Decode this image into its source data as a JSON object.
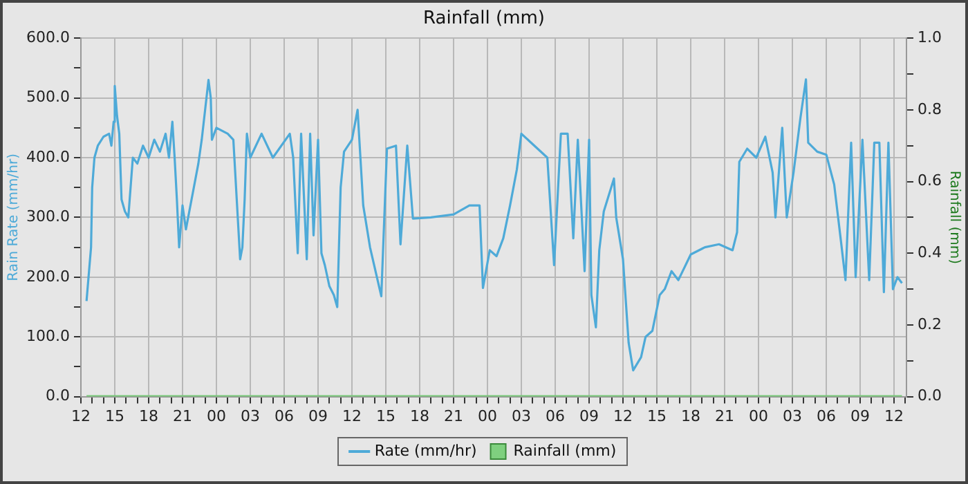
{
  "chart_data": {
    "type": "line",
    "title": "Rainfall (mm)",
    "ylabel": "Rain Rate (mm/hr)",
    "y2label": "Rainfall (mm)",
    "xlim": [
      12,
      85.1
    ],
    "xticks": [
      {
        "value": 12,
        "label": "12"
      },
      {
        "value": 13,
        "label": null
      },
      {
        "value": 14,
        "label": null
      },
      {
        "value": 15,
        "label": "15"
      },
      {
        "value": 16,
        "label": null
      },
      {
        "value": 17,
        "label": null
      },
      {
        "value": 18,
        "label": "18"
      },
      {
        "value": 19,
        "label": null
      },
      {
        "value": 20,
        "label": null
      },
      {
        "value": 21,
        "label": "21"
      },
      {
        "value": 22,
        "label": null
      },
      {
        "value": 23,
        "label": null
      },
      {
        "value": 24,
        "label": "00"
      },
      {
        "value": 25,
        "label": null
      },
      {
        "value": 26,
        "label": null
      },
      {
        "value": 27,
        "label": "03"
      },
      {
        "value": 28,
        "label": null
      },
      {
        "value": 29,
        "label": null
      },
      {
        "value": 30,
        "label": "06"
      },
      {
        "value": 31,
        "label": null
      },
      {
        "value": 32,
        "label": null
      },
      {
        "value": 33,
        "label": "09"
      },
      {
        "value": 34,
        "label": null
      },
      {
        "value": 35,
        "label": null
      },
      {
        "value": 36,
        "label": "12"
      },
      {
        "value": 37,
        "label": null
      },
      {
        "value": 38,
        "label": null
      },
      {
        "value": 39,
        "label": "15"
      },
      {
        "value": 40,
        "label": null
      },
      {
        "value": 41,
        "label": null
      },
      {
        "value": 42,
        "label": "18"
      },
      {
        "value": 43,
        "label": null
      },
      {
        "value": 44,
        "label": null
      },
      {
        "value": 45,
        "label": "21"
      },
      {
        "value": 46,
        "label": null
      },
      {
        "value": 47,
        "label": null
      },
      {
        "value": 48,
        "label": "00"
      },
      {
        "value": 49,
        "label": null
      },
      {
        "value": 50,
        "label": null
      },
      {
        "value": 51,
        "label": "03"
      },
      {
        "value": 52,
        "label": null
      },
      {
        "value": 53,
        "label": null
      },
      {
        "value": 54,
        "label": "06"
      },
      {
        "value": 55,
        "label": null
      },
      {
        "value": 56,
        "label": null
      },
      {
        "value": 57,
        "label": "09"
      },
      {
        "value": 58,
        "label": null
      },
      {
        "value": 59,
        "label": null
      },
      {
        "value": 60,
        "label": "12"
      },
      {
        "value": 61,
        "label": null
      },
      {
        "value": 62,
        "label": null
      },
      {
        "value": 63,
        "label": "15"
      },
      {
        "value": 64,
        "label": null
      },
      {
        "value": 65,
        "label": null
      },
      {
        "value": 66,
        "label": "18"
      },
      {
        "value": 67,
        "label": null
      },
      {
        "value": 68,
        "label": null
      },
      {
        "value": 69,
        "label": "21"
      },
      {
        "value": 70,
        "label": null
      },
      {
        "value": 71,
        "label": null
      },
      {
        "value": 72,
        "label": "00"
      },
      {
        "value": 73,
        "label": null
      },
      {
        "value": 74,
        "label": null
      },
      {
        "value": 75,
        "label": "03"
      },
      {
        "value": 76,
        "label": null
      },
      {
        "value": 77,
        "label": null
      },
      {
        "value": 78,
        "label": "06"
      },
      {
        "value": 79,
        "label": null
      },
      {
        "value": 80,
        "label": null
      },
      {
        "value": 81,
        "label": "09"
      },
      {
        "value": 82,
        "label": null
      },
      {
        "value": 83,
        "label": null
      },
      {
        "value": 84,
        "label": "12"
      },
      {
        "value": 85,
        "label": null
      }
    ],
    "ylim": [
      0,
      600
    ],
    "yticks": [
      {
        "value": 0,
        "label": "0.0"
      },
      {
        "value": 50,
        "label": null
      },
      {
        "value": 100,
        "label": "100.0"
      },
      {
        "value": 150,
        "label": null
      },
      {
        "value": 200,
        "label": "200.0"
      },
      {
        "value": 250,
        "label": null
      },
      {
        "value": 300,
        "label": "300.0"
      },
      {
        "value": 350,
        "label": null
      },
      {
        "value": 400,
        "label": "400.0"
      },
      {
        "value": 450,
        "label": null
      },
      {
        "value": 500,
        "label": "500.0"
      },
      {
        "value": 550,
        "label": null
      },
      {
        "value": 600,
        "label": "600.0"
      }
    ],
    "y2lim": [
      0,
      1
    ],
    "y2ticks": [
      {
        "value": 0,
        "label": "0.0"
      },
      {
        "value": 0.1,
        "label": null
      },
      {
        "value": 0.2,
        "label": "0.2"
      },
      {
        "value": 0.3,
        "label": null
      },
      {
        "value": 0.4,
        "label": "0.4"
      },
      {
        "value": 0.5,
        "label": null
      },
      {
        "value": 0.6,
        "label": "0.6"
      },
      {
        "value": 0.7,
        "label": null
      },
      {
        "value": 0.8,
        "label": "0.8"
      },
      {
        "value": 0.9,
        "label": null
      },
      {
        "value": 1,
        "label": "1.0"
      }
    ],
    "grid": true,
    "legend": "bottom",
    "marker": "none",
    "line_style": "solid",
    "series": [
      {
        "name": "Rate (mm/hr)",
        "color": "#4eaad8",
        "x": [
          12.5,
          12.9,
          13.0,
          13.2,
          13.5,
          14,
          14.5,
          14.7,
          14.9,
          15.0,
          15.2,
          15.4,
          15.6,
          15.9,
          16.2,
          16.6,
          17,
          17.5,
          18,
          18.5,
          19,
          19.5,
          19.8,
          20.1,
          20.3,
          20.5,
          20.7,
          21.0,
          21.3,
          21.6,
          22.0,
          22.4,
          22.7,
          23.0,
          23.3,
          23.5,
          23.6,
          24.0,
          25,
          25.5,
          25.8,
          26.1,
          26.3,
          26.5,
          26.7,
          27,
          28,
          29,
          30.5,
          30.8,
          31.2,
          31.5,
          32.0,
          32.3,
          32.6,
          33.0,
          33.3,
          33.6,
          34,
          34.4,
          34.7,
          35.0,
          35.3,
          36,
          36.5,
          37,
          37.6,
          38.6,
          39.1,
          39.9,
          40.3,
          40.9,
          41.4,
          43,
          45,
          46.4,
          47.3,
          47.6,
          48.2,
          48.8,
          49.4,
          50,
          50.6,
          51.0,
          53.3,
          53.9,
          54.5,
          55.1,
          55.6,
          56.0,
          56.6,
          57.0,
          57.2,
          57.6,
          57.9,
          58.3,
          59.2,
          59.4,
          60.0,
          60.5,
          60.9,
          61.6,
          62.0,
          62.6,
          63.25,
          63.7,
          64.3,
          64.9,
          66,
          67.25,
          68.5,
          69.7,
          70.1,
          70.3,
          71.0,
          71.8,
          72.6,
          73.25,
          73.5,
          74.1,
          74.5,
          75.1,
          75.7,
          76.2,
          76.4,
          77.2,
          78.0,
          78.7,
          79.3,
          79.7,
          80.2,
          80.6,
          81.2,
          81.8,
          82.25,
          82.7,
          83.1,
          83.5,
          83.9,
          84.3,
          84.7
        ],
        "values": [
          160,
          250,
          350,
          400,
          420,
          435,
          440,
          420,
          460,
          520,
          470,
          440,
          330,
          310,
          300,
          400,
          390,
          420,
          400,
          430,
          410,
          440,
          400,
          460,
          400,
          330,
          250,
          320,
          280,
          310,
          350,
          390,
          430,
          480,
          530,
          500,
          430,
          450,
          440,
          430,
          330,
          230,
          250,
          330,
          440,
          400,
          440,
          400,
          440,
          400,
          240,
          440,
          230,
          440,
          270,
          430,
          240,
          220,
          185,
          170,
          150,
          350,
          410,
          430,
          480,
          320,
          250,
          168,
          415,
          420,
          255,
          420,
          298,
          300,
          305,
          320,
          320,
          182,
          245,
          235,
          265,
          320,
          380,
          440,
          400,
          220,
          440,
          440,
          265,
          430,
          210,
          430,
          170,
          116,
          245,
          310,
          365,
          300,
          230,
          90,
          44,
          66,
          100,
          110,
          170,
          180,
          210,
          195,
          238,
          250,
          255,
          245,
          275,
          393,
          415,
          400,
          435,
          375,
          300,
          450,
          300,
          375,
          465,
          531,
          425,
          410,
          405,
          355,
          260,
          195,
          425,
          200,
          430,
          195,
          425,
          425,
          175,
          425,
          180,
          200,
          190
        ]
      },
      {
        "name": "Rainfall (mm)",
        "color": "#78c878",
        "axis": "y2",
        "x": [
          12.5,
          84.7
        ],
        "values": [
          0,
          0
        ]
      }
    ]
  }
}
